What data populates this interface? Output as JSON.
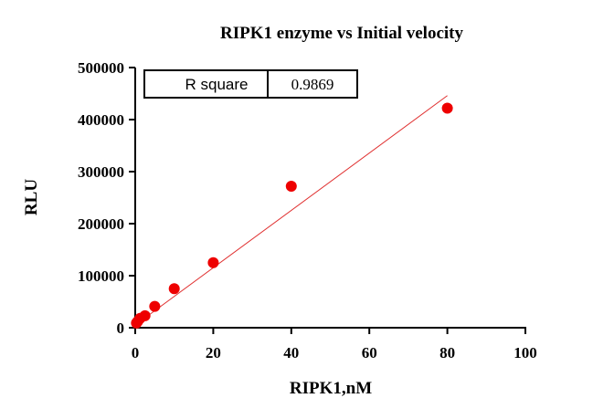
{
  "chart_data": {
    "type": "scatter",
    "title": "RIPK1 enzyme vs Initial velocity",
    "xlabel": "RIPK1,nM",
    "ylabel": "RLU",
    "xlim": [
      0,
      100
    ],
    "ylim": [
      0,
      500000
    ],
    "x_ticks": [
      "0",
      "20",
      "40",
      "60",
      "80",
      "100"
    ],
    "y_ticks": [
      "0",
      "100000",
      "200000",
      "300000",
      "400000",
      "500000"
    ],
    "grid": false,
    "points_color": "#ee0000",
    "fit_line_color": "#e03030",
    "points": [
      {
        "x": 0.3125,
        "y": 9000
      },
      {
        "x": 0.625,
        "y": 12000
      },
      {
        "x": 1.25,
        "y": 18000
      },
      {
        "x": 2.5,
        "y": 23000
      },
      {
        "x": 5,
        "y": 41000
      },
      {
        "x": 10,
        "y": 75000
      },
      {
        "x": 20,
        "y": 125000
      },
      {
        "x": 40,
        "y": 272000
      },
      {
        "x": 80,
        "y": 422000
      }
    ],
    "fit_line": {
      "x_start": 0,
      "x_end": 80,
      "y_start": 5000,
      "y_end": 446000
    },
    "stats_box": {
      "label": "R square",
      "value": "0.9869"
    }
  }
}
